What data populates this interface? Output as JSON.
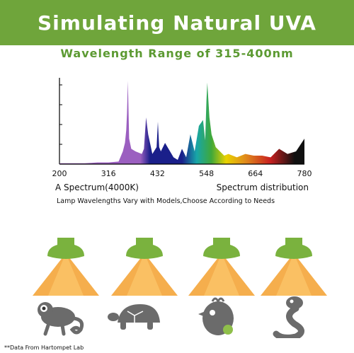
{
  "header": {
    "title": "Simulating Natural UVA"
  },
  "subtitle": "Wavelength Range of 315-400nm",
  "chart_data": {
    "type": "area",
    "title": "",
    "xlabel": "",
    "ylabel": "",
    "x_ticks": [
      200,
      316,
      432,
      548,
      664,
      780
    ],
    "xlim": [
      200,
      780
    ],
    "ylim": [
      0,
      1
    ],
    "grid": false,
    "colors": {
      "uva": "#9b5fc0",
      "blue": "#1a1f8a",
      "cyan": "#18a6a8",
      "green": "#3fa83a",
      "yellow": "#e8d200",
      "orange": "#e08a1c",
      "red": "#c82020",
      "deep_red": "#101010"
    },
    "series": [
      {
        "x": [
          200,
          230,
          260,
          290,
          316,
          340,
          350,
          355,
          358,
          360,
          362,
          365,
          370,
          380,
          395,
          400,
          405,
          410,
          420,
          430,
          433,
          436,
          440,
          450,
          470,
          480,
          490,
          500,
          510,
          520,
          530,
          540,
          545,
          548,
          550,
          555,
          560,
          570,
          580,
          590,
          600,
          620,
          640,
          660,
          680,
          700,
          720,
          740,
          760,
          780
        ],
        "y": [
          0.01,
          0.01,
          0.01,
          0.02,
          0.02,
          0.03,
          0.15,
          0.25,
          0.4,
          0.6,
          0.98,
          0.3,
          0.18,
          0.15,
          0.12,
          0.18,
          0.55,
          0.35,
          0.12,
          0.2,
          0.5,
          0.2,
          0.15,
          0.25,
          0.08,
          0.05,
          0.18,
          0.08,
          0.35,
          0.15,
          0.45,
          0.52,
          0.28,
          0.75,
          0.96,
          0.55,
          0.35,
          0.2,
          0.15,
          0.1,
          0.12,
          0.08,
          0.12,
          0.1,
          0.1,
          0.08,
          0.18,
          0.12,
          0.15,
          0.3
        ]
      }
    ]
  },
  "labels": {
    "left": "A Spectrum(4000K)",
    "right": "Spectrum distribution"
  },
  "note": "Lamp Wavelengths Vary with Models,Choose According to Needs",
  "icons": [
    "lamp-icon",
    "chameleon-icon",
    "turtle-icon",
    "bird-icon",
    "snake-icon"
  ],
  "footnote": "**Data From Hartompet Lab",
  "colors": {
    "banner": "#6fa53b",
    "accent_text": "#5c9a32",
    "lamp": "#7ab23e",
    "beam": "#f4a53a",
    "animal": "#6b6b6b"
  }
}
